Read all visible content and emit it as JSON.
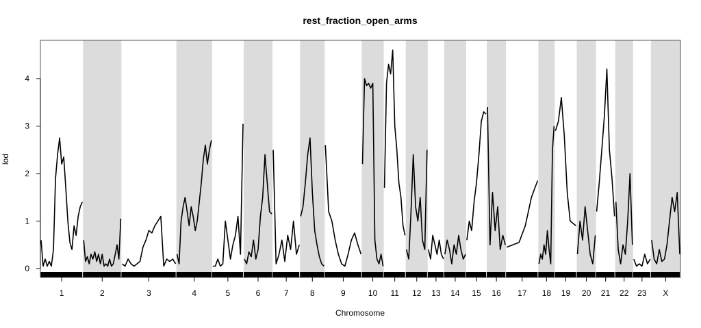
{
  "chart_data": {
    "type": "line",
    "title": "rest_fraction_open_arms",
    "xlabel": "Chromosome",
    "ylabel": "lod",
    "ylim": [
      0,
      4.8
    ],
    "yticks": [
      0,
      1,
      2,
      3,
      4
    ],
    "grid": false,
    "legend": "none",
    "colors": {
      "line": "#000000",
      "band": "#dcdcdc",
      "rug": "#000000"
    },
    "chromosomes": [
      {
        "label": "1",
        "shaded": false,
        "points": [
          0.6,
          0.05,
          0.2,
          0.05,
          0.15,
          0.05,
          0.4,
          1.9,
          2.4,
          2.75,
          2.2,
          2.35,
          1.7,
          1.0,
          0.55,
          0.4,
          0.9,
          0.7,
          1.1,
          1.3,
          1.4
        ]
      },
      {
        "label": "2",
        "shaded": true,
        "points": [
          0.6,
          0.15,
          0.25,
          0.1,
          0.3,
          0.2,
          0.35,
          0.15,
          0.3,
          0.1,
          0.3,
          0.05,
          0.1,
          0.05,
          0.2,
          0.05,
          0.1,
          0.3,
          0.5,
          0.2,
          1.05
        ]
      },
      {
        "label": "3",
        "shaded": false,
        "points": [
          0.1,
          0.05,
          0.2,
          0.1,
          0.05,
          0.1,
          0.15,
          0.45,
          0.6,
          0.8,
          0.75,
          0.9,
          1.0,
          1.1,
          0.05,
          0.2,
          0.15,
          0.2,
          0.1
        ]
      },
      {
        "label": "4",
        "shaded": true,
        "points": [
          0.3,
          0.1,
          1.0,
          1.3,
          1.5,
          1.2,
          0.9,
          1.3,
          1.1,
          0.8,
          1.0,
          1.4,
          1.8,
          2.3,
          2.6,
          2.2,
          2.5,
          2.7
        ]
      },
      {
        "label": "5",
        "shaded": false,
        "points": [
          0.05,
          0.05,
          0.2,
          0.05,
          0.1,
          1.0,
          0.6,
          0.2,
          0.5,
          0.7,
          1.1,
          0.3,
          3.05
        ]
      },
      {
        "label": "6",
        "shaded": true,
        "points": [
          0.2,
          0.1,
          0.35,
          0.25,
          0.6,
          0.2,
          0.4,
          1.1,
          1.5,
          2.4,
          1.8,
          1.2,
          1.15
        ]
      },
      {
        "label": "7",
        "shaded": false,
        "points": [
          2.5,
          0.1,
          0.3,
          0.6,
          0.15,
          0.7,
          0.4,
          1.0,
          0.3,
          0.5
        ]
      },
      {
        "label": "8",
        "shaded": true,
        "points": [
          1.1,
          1.3,
          1.8,
          2.4,
          2.75,
          1.6,
          0.8,
          0.5,
          0.25,
          0.1,
          0.05
        ]
      },
      {
        "label": "9",
        "shaded": false,
        "points": [
          2.6,
          1.2,
          1.0,
          0.6,
          0.3,
          0.1,
          0.05,
          0.3,
          0.6,
          0.75,
          0.5,
          0.3
        ]
      },
      {
        "label": "10",
        "shaded": true,
        "points": [
          2.2,
          4.0,
          3.85,
          3.9,
          3.8,
          3.9,
          0.6,
          0.2,
          0.1,
          0.3,
          0.05
        ]
      },
      {
        "label": "11",
        "shaded": false,
        "points": [
          1.7,
          3.9,
          4.3,
          4.1,
          4.6,
          3.0,
          2.5,
          1.8,
          1.5,
          0.9,
          0.7
        ]
      },
      {
        "label": "12",
        "shaded": true,
        "points": [
          0.4,
          0.2,
          1.2,
          2.4,
          1.3,
          1.0,
          1.5,
          0.6,
          0.4,
          2.5
        ]
      },
      {
        "label": "13",
        "shaded": false,
        "points": [
          0.4,
          0.2,
          0.7,
          0.5,
          0.3,
          0.6,
          0.3,
          0.2
        ]
      },
      {
        "label": "14",
        "shaded": true,
        "points": [
          0.3,
          0.6,
          0.4,
          0.1,
          0.5,
          0.3,
          0.7,
          0.4,
          0.2,
          0.3
        ]
      },
      {
        "label": "15",
        "shaded": false,
        "points": [
          0.6,
          1.0,
          0.8,
          1.4,
          1.8,
          2.4,
          3.1,
          3.3,
          3.25
        ]
      },
      {
        "label": "16",
        "shaded": true,
        "points": [
          3.4,
          0.5,
          1.6,
          0.8,
          1.3,
          0.4,
          0.7,
          0.5
        ]
      },
      {
        "label": "17",
        "shaded": false,
        "points": [
          0.45,
          0.5,
          0.55,
          0.9,
          1.5,
          1.85
        ]
      },
      {
        "label": "18",
        "shaded": true,
        "points": [
          0.1,
          0.3,
          0.2,
          0.5,
          0.3,
          0.8,
          0.4,
          0.1,
          2.5,
          3.0
        ]
      },
      {
        "label": "19",
        "shaded": false,
        "points": [
          2.9,
          3.1,
          3.6,
          2.8,
          1.6,
          1.0,
          0.95,
          0.9
        ]
      },
      {
        "label": "20",
        "shaded": true,
        "points": [
          0.3,
          1.0,
          0.6,
          1.3,
          0.8,
          0.3,
          0.1,
          0.7
        ]
      },
      {
        "label": "21",
        "shaded": false,
        "points": [
          1.2,
          1.8,
          2.5,
          3.2,
          4.2,
          2.5,
          1.9,
          1.1
        ]
      },
      {
        "label": "22",
        "shaded": true,
        "points": [
          1.4,
          0.4,
          0.1,
          0.5,
          0.3,
          1.0,
          2.0,
          0.5
        ]
      },
      {
        "label": "23",
        "shaded": false,
        "points": [
          0.2,
          0.05,
          0.1,
          0.05,
          0.3,
          0.1,
          0.2
        ]
      },
      {
        "label": "X",
        "shaded": true,
        "points": [
          0.6,
          0.2,
          0.1,
          0.4,
          0.15,
          0.2,
          0.5,
          1.0,
          1.5,
          1.2,
          1.6,
          0.3
        ]
      }
    ]
  }
}
